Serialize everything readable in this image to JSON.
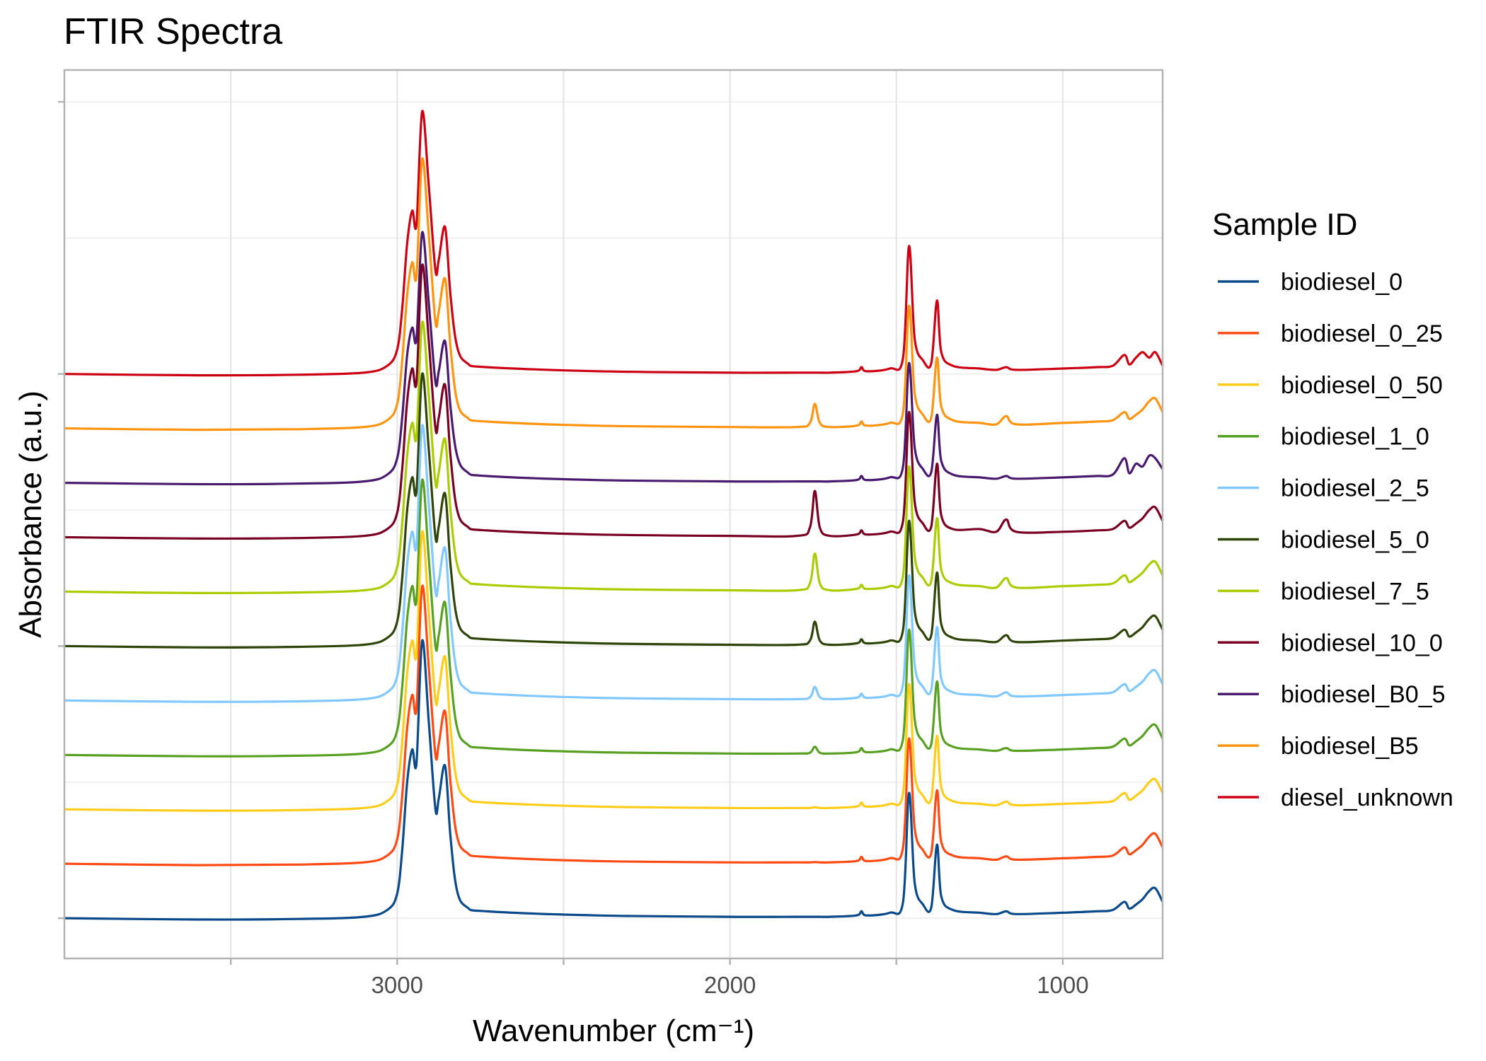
{
  "chart_data": {
    "type": "line",
    "title": "FTIR Spectra",
    "xlabel": "Wavenumber (cm⁻¹)",
    "ylabel": "Absorbance (a.u.)",
    "xlim": [
      4000,
      700
    ],
    "x_reversed": true,
    "ylim": [
      -0.148,
      3.117
    ],
    "x_ticks": [
      3500,
      3000,
      2500,
      2000,
      1500,
      1000
    ],
    "x_tick_labels": [
      {
        "value": 3000,
        "label": "3000"
      },
      {
        "value": 2000,
        "label": "2000"
      },
      {
        "value": 1000,
        "label": "1000"
      }
    ],
    "y_ticks": [
      0,
      1,
      2,
      3
    ],
    "y_tick_labels_shown": false,
    "grid": true,
    "vertical_offset": 0.2,
    "legend": {
      "title": "Sample ID",
      "position": "right"
    },
    "x": [
      4000,
      3600,
      3300,
      3100,
      3030,
      3000,
      2985,
      2970,
      2955,
      2942,
      2925,
      2905,
      2885,
      2875,
      2856,
      2840,
      2820,
      2790,
      2730,
      2400,
      2000,
      1800,
      1760,
      1745,
      1730,
      1700,
      1620,
      1605,
      1590,
      1520,
      1480,
      1462,
      1445,
      1420,
      1395,
      1378,
      1365,
      1330,
      1250,
      1200,
      1170,
      1140,
      1000,
      900,
      850,
      815,
      800,
      780,
      760,
      740,
      722,
      700
    ],
    "series": [
      {
        "name": "biodiesel_0",
        "color": "#0A4A8A",
        "stack_index": 0,
        "values": [
          0,
          -0.005,
          -0.003,
          0.005,
          0.03,
          0.09,
          0.25,
          0.5,
          0.62,
          0.57,
          1.02,
          0.72,
          0.4,
          0.44,
          0.56,
          0.3,
          0.1,
          0.04,
          0.025,
          0.01,
          0.005,
          0.005,
          0.005,
          0.005,
          0.005,
          0.005,
          0.01,
          0.025,
          0.01,
          0.02,
          0.06,
          0.46,
          0.13,
          0.05,
          0.04,
          0.27,
          0.08,
          0.03,
          0.02,
          0.015,
          0.025,
          0.015,
          0.02,
          0.025,
          0.03,
          0.06,
          0.035,
          0.05,
          0.07,
          0.1,
          0.11,
          0.06
        ]
      },
      {
        "name": "biodiesel_0_25",
        "color": "#FF4A14",
        "stack_index": 1,
        "values": [
          0,
          -0.005,
          -0.003,
          0.005,
          0.03,
          0.09,
          0.25,
          0.5,
          0.62,
          0.57,
          1.02,
          0.72,
          0.4,
          0.44,
          0.56,
          0.3,
          0.1,
          0.04,
          0.025,
          0.01,
          0.005,
          0.005,
          0.005,
          0.006,
          0.005,
          0.005,
          0.01,
          0.025,
          0.01,
          0.02,
          0.06,
          0.46,
          0.13,
          0.05,
          0.04,
          0.27,
          0.08,
          0.03,
          0.02,
          0.015,
          0.027,
          0.015,
          0.02,
          0.025,
          0.03,
          0.06,
          0.035,
          0.05,
          0.07,
          0.1,
          0.11,
          0.06
        ]
      },
      {
        "name": "biodiesel_0_50",
        "color": "#FFCC1A",
        "stack_index": 2,
        "values": [
          0,
          -0.005,
          -0.003,
          0.005,
          0.03,
          0.09,
          0.25,
          0.5,
          0.62,
          0.57,
          1.02,
          0.72,
          0.4,
          0.44,
          0.56,
          0.3,
          0.1,
          0.04,
          0.025,
          0.01,
          0.005,
          0.005,
          0.005,
          0.008,
          0.005,
          0.005,
          0.01,
          0.025,
          0.01,
          0.02,
          0.06,
          0.46,
          0.13,
          0.05,
          0.04,
          0.27,
          0.08,
          0.03,
          0.02,
          0.015,
          0.028,
          0.015,
          0.02,
          0.025,
          0.03,
          0.06,
          0.035,
          0.05,
          0.07,
          0.1,
          0.11,
          0.06
        ]
      },
      {
        "name": "biodiesel_1_0",
        "color": "#58A022",
        "stack_index": 3,
        "values": [
          0,
          -0.005,
          -0.003,
          0.005,
          0.03,
          0.09,
          0.25,
          0.5,
          0.62,
          0.57,
          1.01,
          0.72,
          0.4,
          0.44,
          0.56,
          0.3,
          0.1,
          0.04,
          0.025,
          0.01,
          0.005,
          0.005,
          0.008,
          0.03,
          0.008,
          0.005,
          0.01,
          0.025,
          0.01,
          0.02,
          0.06,
          0.46,
          0.13,
          0.05,
          0.04,
          0.27,
          0.08,
          0.03,
          0.02,
          0.015,
          0.025,
          0.015,
          0.02,
          0.025,
          0.03,
          0.06,
          0.035,
          0.05,
          0.07,
          0.1,
          0.11,
          0.06
        ]
      },
      {
        "name": "biodiesel_2_5",
        "color": "#80C8FF",
        "stack_index": 4,
        "values": [
          0,
          -0.005,
          -0.003,
          0.005,
          0.03,
          0.09,
          0.25,
          0.5,
          0.62,
          0.57,
          1.01,
          0.72,
          0.4,
          0.44,
          0.56,
          0.3,
          0.1,
          0.04,
          0.025,
          0.01,
          0.005,
          0.005,
          0.012,
          0.05,
          0.012,
          0.005,
          0.01,
          0.025,
          0.01,
          0.02,
          0.06,
          0.46,
          0.13,
          0.05,
          0.04,
          0.27,
          0.08,
          0.03,
          0.02,
          0.015,
          0.03,
          0.015,
          0.02,
          0.025,
          0.03,
          0.06,
          0.035,
          0.05,
          0.07,
          0.1,
          0.11,
          0.06
        ]
      },
      {
        "name": "biodiesel_5_0",
        "color": "#2E4408",
        "stack_index": 5,
        "values": [
          0,
          -0.005,
          -0.003,
          0.005,
          0.03,
          0.09,
          0.25,
          0.5,
          0.62,
          0.57,
          1.0,
          0.72,
          0.4,
          0.44,
          0.56,
          0.3,
          0.1,
          0.04,
          0.025,
          0.01,
          0.005,
          0.005,
          0.02,
          0.09,
          0.02,
          0.005,
          0.01,
          0.025,
          0.01,
          0.02,
          0.06,
          0.46,
          0.13,
          0.05,
          0.04,
          0.27,
          0.08,
          0.03,
          0.02,
          0.015,
          0.04,
          0.015,
          0.02,
          0.025,
          0.03,
          0.06,
          0.035,
          0.05,
          0.07,
          0.1,
          0.11,
          0.06
        ]
      },
      {
        "name": "biodiesel_7_5",
        "color": "#AACC00",
        "stack_index": 6,
        "values": [
          0,
          -0.005,
          -0.003,
          0.005,
          0.03,
          0.09,
          0.25,
          0.5,
          0.62,
          0.57,
          0.99,
          0.72,
          0.4,
          0.44,
          0.56,
          0.3,
          0.1,
          0.04,
          0.025,
          0.01,
          0.005,
          0.005,
          0.03,
          0.14,
          0.03,
          0.005,
          0.01,
          0.025,
          0.01,
          0.02,
          0.06,
          0.46,
          0.13,
          0.05,
          0.04,
          0.27,
          0.08,
          0.03,
          0.02,
          0.015,
          0.05,
          0.015,
          0.02,
          0.025,
          0.03,
          0.06,
          0.035,
          0.05,
          0.07,
          0.1,
          0.11,
          0.06
        ]
      },
      {
        "name": "biodiesel_10_0",
        "color": "#7A0023",
        "stack_index": 7,
        "values": [
          0,
          -0.005,
          -0.003,
          0.005,
          0.03,
          0.09,
          0.25,
          0.5,
          0.62,
          0.57,
          1.0,
          0.72,
          0.4,
          0.44,
          0.56,
          0.3,
          0.1,
          0.04,
          0.025,
          0.01,
          0.005,
          0.005,
          0.035,
          0.17,
          0.035,
          0.005,
          0.01,
          0.025,
          0.01,
          0.02,
          0.06,
          0.46,
          0.13,
          0.05,
          0.04,
          0.27,
          0.08,
          0.03,
          0.03,
          0.02,
          0.065,
          0.02,
          0.02,
          0.025,
          0.03,
          0.06,
          0.035,
          0.05,
          0.07,
          0.1,
          0.11,
          0.06
        ]
      },
      {
        "name": "biodiesel_B0_5",
        "color": "#4A1A6E",
        "stack_index": 8,
        "values": [
          0,
          -0.005,
          -0.003,
          0.005,
          0.03,
          0.09,
          0.24,
          0.47,
          0.57,
          0.53,
          0.92,
          0.66,
          0.37,
          0.41,
          0.52,
          0.28,
          0.1,
          0.04,
          0.025,
          0.01,
          0.005,
          0.005,
          0.005,
          0.005,
          0.005,
          0.005,
          0.01,
          0.025,
          0.01,
          0.02,
          0.06,
          0.44,
          0.13,
          0.05,
          0.04,
          0.25,
          0.08,
          0.03,
          0.02,
          0.015,
          0.025,
          0.015,
          0.02,
          0.025,
          0.03,
          0.09,
          0.035,
          0.07,
          0.06,
          0.1,
          0.09,
          0.05
        ]
      },
      {
        "name": "biodiesel_B5",
        "color": "#FF9410",
        "stack_index": 9,
        "values": [
          0,
          -0.005,
          -0.003,
          0.005,
          0.03,
          0.09,
          0.25,
          0.49,
          0.61,
          0.56,
          0.99,
          0.71,
          0.39,
          0.43,
          0.55,
          0.3,
          0.1,
          0.04,
          0.025,
          0.01,
          0.005,
          0.005,
          0.02,
          0.09,
          0.02,
          0.005,
          0.01,
          0.025,
          0.01,
          0.02,
          0.06,
          0.45,
          0.13,
          0.05,
          0.04,
          0.26,
          0.08,
          0.03,
          0.02,
          0.015,
          0.045,
          0.015,
          0.02,
          0.025,
          0.03,
          0.06,
          0.035,
          0.05,
          0.07,
          0.1,
          0.11,
          0.06
        ]
      },
      {
        "name": "diesel_unknown",
        "color": "#CC0012",
        "stack_index": 10,
        "values": [
          0,
          -0.005,
          -0.003,
          0.005,
          0.03,
          0.09,
          0.24,
          0.48,
          0.6,
          0.55,
          0.965,
          0.69,
          0.38,
          0.42,
          0.54,
          0.29,
          0.1,
          0.04,
          0.025,
          0.01,
          0.005,
          0.005,
          0.005,
          0.005,
          0.005,
          0.005,
          0.01,
          0.025,
          0.01,
          0.02,
          0.06,
          0.47,
          0.13,
          0.05,
          0.04,
          0.27,
          0.08,
          0.03,
          0.02,
          0.015,
          0.025,
          0.015,
          0.02,
          0.025,
          0.03,
          0.07,
          0.035,
          0.06,
          0.08,
          0.06,
          0.08,
          0.03
        ]
      }
    ]
  }
}
